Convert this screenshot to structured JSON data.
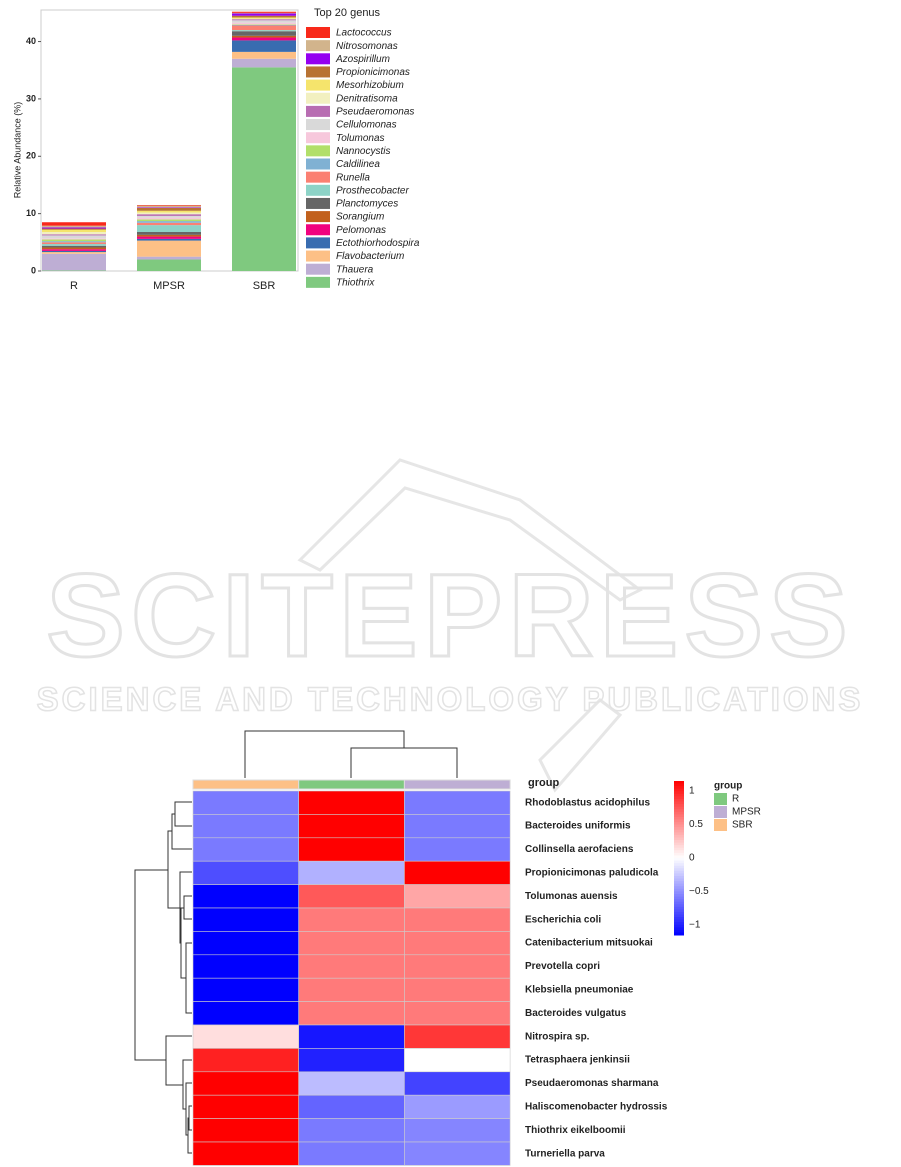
{
  "chart_data": [
    {
      "type": "stacked-bar",
      "y_label": "Relative Abundance (%)",
      "legend_title": "Top 20 genus",
      "categories": [
        "R",
        "MPSR",
        "SBR"
      ],
      "ylim": [
        0,
        45.5
      ],
      "yticks": [
        0,
        10,
        20,
        30,
        40
      ],
      "series": [
        {
          "name": "Lactococcus",
          "color": "#f8291a",
          "values": [
            0.6,
            0.1,
            0.2
          ]
        },
        {
          "name": "Nitrosomonas",
          "color": "#d2b48c",
          "values": [
            0.3,
            0.3,
            0.1
          ]
        },
        {
          "name": "Azospirillum",
          "color": "#9400f0",
          "values": [
            0.2,
            0.1,
            0.4
          ]
        },
        {
          "name": "Propionicimonas",
          "color": "#b87333",
          "values": [
            0.2,
            0.5,
            0.3
          ]
        },
        {
          "name": "Mesorhizobium",
          "color": "#f5e46c",
          "values": [
            0.4,
            0.3,
            0.2
          ]
        },
        {
          "name": "Denitratisoma",
          "color": "#f2f0c0",
          "values": [
            0.4,
            0.3,
            0.1
          ]
        },
        {
          "name": "Pseudaeromonas",
          "color": "#b86db2",
          "values": [
            0.2,
            0.3,
            0.2
          ]
        },
        {
          "name": "Cellulomonas",
          "color": "#d9d9d9",
          "values": [
            0.5,
            0.3,
            0.4
          ]
        },
        {
          "name": "Tolumonas",
          "color": "#f7c8dc",
          "values": [
            0.2,
            0.3,
            0.3
          ]
        },
        {
          "name": "Nannocystis",
          "color": "#b2df6a",
          "values": [
            0.3,
            0.3,
            0.1
          ]
        },
        {
          "name": "Caldilinea",
          "color": "#80b1d3",
          "values": [
            0.2,
            0.3,
            0.1
          ]
        },
        {
          "name": "Runella",
          "color": "#fb8072",
          "values": [
            0.3,
            0.4,
            0.8
          ]
        },
        {
          "name": "Prosthecobacter",
          "color": "#8dd3c7",
          "values": [
            0.3,
            1.2,
            0.2
          ]
        },
        {
          "name": "Planctomyces",
          "color": "#666666",
          "values": [
            0.3,
            0.5,
            0.8
          ]
        },
        {
          "name": "Sorangium",
          "color": "#c2611d",
          "values": [
            0.3,
            0.3,
            0.3
          ]
        },
        {
          "name": "Pelomonas",
          "color": "#f0027f",
          "values": [
            0.3,
            0.4,
            0.5
          ]
        },
        {
          "name": "Ectothiorhodospira",
          "color": "#386cb0",
          "values": [
            0.2,
            0.3,
            2.0
          ]
        },
        {
          "name": "Flavobacterium",
          "color": "#fdc086",
          "values": [
            0.3,
            2.8,
            1.2
          ]
        },
        {
          "name": "Thauera",
          "color": "#beaed4",
          "values": [
            2.9,
            0.5,
            1.5
          ]
        },
        {
          "name": "Thiothrix",
          "color": "#7fc97f",
          "values": [
            0.1,
            2.0,
            35.5
          ]
        }
      ]
    },
    {
      "type": "heatmap",
      "annotation_title": "group",
      "legend_title": "group",
      "columns": [
        {
          "name": "SBR",
          "color": "#fdc086"
        },
        {
          "name": "R",
          "color": "#7fc97f"
        },
        {
          "name": "MPSR",
          "color": "#beaed4"
        }
      ],
      "group_legend": [
        {
          "name": "R",
          "color": "#7fc97f"
        },
        {
          "name": "MPSR",
          "color": "#beaed4"
        },
        {
          "name": "SBR",
          "color": "#fdc086"
        }
      ],
      "rows": [
        "Rhodoblastus acidophilus",
        "Bacteroides uniformis",
        "Collinsella aerofaciens",
        "Propionicimonas paludicola",
        "Tolumonas auensis",
        "Escherichia coli",
        "Catenibacterium mitsuokai",
        "Prevotella copri",
        "Klebsiella pneumoniae",
        "Bacteroides vulgatus",
        "Nitrospira sp.",
        "Tetrasphaera jenkinsii",
        "Pseudaeromonas sharmana",
        "Haliscomenobacter hydrossis",
        "Thiothrix eikelboomii",
        "Turneriella parva"
      ],
      "values": [
        [
          -0.6,
          1.15,
          -0.6
        ],
        [
          -0.6,
          1.15,
          -0.6
        ],
        [
          -0.6,
          1.15,
          -0.6
        ],
        [
          -0.8,
          -0.35,
          1.15
        ],
        [
          -1.15,
          0.75,
          0.4
        ],
        [
          -1.15,
          0.6,
          0.6
        ],
        [
          -1.15,
          0.6,
          0.6
        ],
        [
          -1.15,
          0.6,
          0.6
        ],
        [
          -1.15,
          0.6,
          0.6
        ],
        [
          -1.15,
          0.6,
          0.6
        ],
        [
          0.15,
          -1.05,
          0.9
        ],
        [
          1.0,
          -1.0,
          0
        ],
        [
          1.15,
          -0.3,
          -0.85
        ],
        [
          1.15,
          -0.7,
          -0.45
        ],
        [
          1.15,
          -0.6,
          -0.55
        ],
        [
          1.15,
          -0.6,
          -0.55
        ]
      ],
      "zlim": [
        -1.15,
        1.15
      ],
      "zticks": [
        1,
        0.5,
        0,
        {
          "value": -0.5,
          "label": "−0.5"
        },
        {
          "value": -1,
          "label": "−1"
        }
      ],
      "low_color": "#0000ff",
      "mid_color": "#ffffff",
      "high_color": "#ff0000"
    }
  ],
  "watermark": {
    "title": "SCITEPRESS",
    "subtitle": "SCIENCE AND TECHNOLOGY PUBLICATIONS"
  }
}
